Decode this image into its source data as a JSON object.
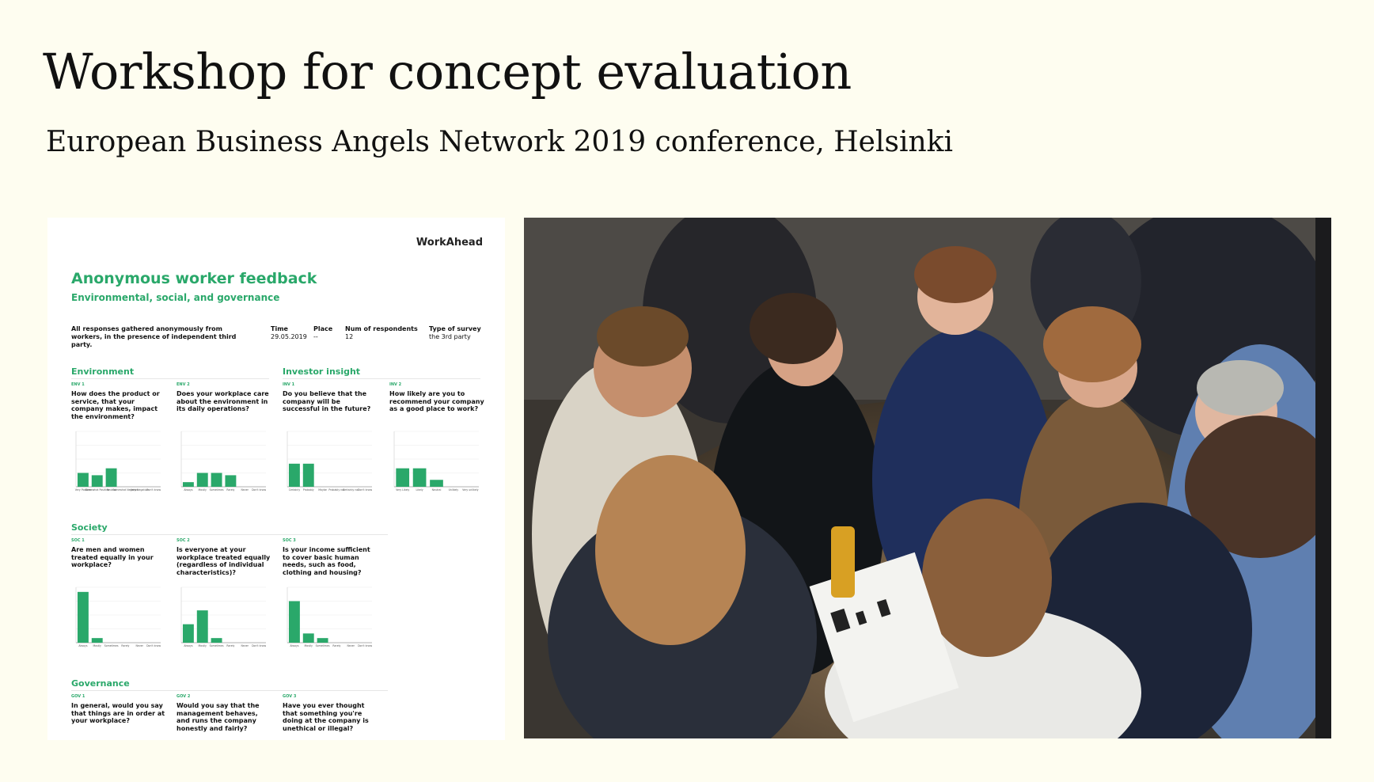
{
  "slide": {
    "title": "Workshop for concept evaluation",
    "subtitle": "European Business Angels Network 2019 conference, Helsinki"
  },
  "document": {
    "brand": "WorkAhead",
    "heading": "Anonymous worker feedback",
    "subheading": "Environmental, social, and governance",
    "intro": "All responses gathered anonymously from workers, in the presence of independent third party.",
    "meta": [
      {
        "label": "Time",
        "value": "29.05.2019"
      },
      {
        "label": "Place",
        "value": "--"
      },
      {
        "label": "Num of respondents",
        "value": "12"
      },
      {
        "label": "Type of survey",
        "value": "the 3rd party"
      }
    ],
    "sections": {
      "environment": "Environment",
      "investor": "Investor insight",
      "society": "Society",
      "governance": "Governance"
    },
    "questions": [
      {
        "num": "ENV 1",
        "text": "How does the product or service, that your company makes, impact the environment?"
      },
      {
        "num": "ENV 2",
        "text": "Does your workplace care about the environment in its daily operations?"
      },
      {
        "num": "INV 1",
        "text": "Do you believe that the company will be successful in the future?"
      },
      {
        "num": "INV 2",
        "text": "How likely are you to recommend your company as a good place to work?"
      },
      {
        "num": "SOC 1",
        "text": "Are men and women treated equally in your workplace?"
      },
      {
        "num": "SOC 2",
        "text": "Is everyone at your workplace treated equally (regardless of individual characteristics)?"
      },
      {
        "num": "SOC 3",
        "text": "Is your income sufficient to cover basic human needs, such as food, clothing and housing?"
      },
      {
        "num": "GOV 1",
        "text": "In general, would you say that things are in order at your workplace?"
      },
      {
        "num": "GOV 2",
        "text": "Would you say that the management behaves, and runs the company honestly and fairly?"
      },
      {
        "num": "GOV 3",
        "text": "Have you ever thought that something you're doing at the company is unethical or illegal?"
      }
    ]
  },
  "chart_data": [
    {
      "type": "bar",
      "categories": [
        "Very Positive",
        "Somewhat Positive",
        "Neutral",
        "Somewhat Negative",
        "Very Negative",
        "Don't know"
      ],
      "values": [
        3,
        2.5,
        4,
        0,
        0,
        0
      ],
      "ylim": [
        0,
        12
      ],
      "ylabel": "",
      "xlabel": ""
    },
    {
      "type": "bar",
      "categories": [
        "Always",
        "Mostly",
        "Sometimes",
        "Rarely",
        "Never",
        "Don't know"
      ],
      "values": [
        1,
        3,
        3,
        2.5,
        0,
        0
      ],
      "ylim": [
        0,
        12
      ],
      "ylabel": "",
      "xlabel": ""
    },
    {
      "type": "bar",
      "categories": [
        "Certainly",
        "Probably",
        "Maybe",
        "Probably not",
        "Certainly not",
        "Don't know"
      ],
      "values": [
        5,
        5,
        0,
        0,
        0,
        0
      ],
      "ylim": [
        0,
        12
      ],
      "ylabel": "",
      "xlabel": ""
    },
    {
      "type": "bar",
      "categories": [
        "Very Likely",
        "Likely",
        "Neutral",
        "Unlikely",
        "Very unlikely"
      ],
      "values": [
        4,
        4,
        1.5,
        0,
        0
      ],
      "ylim": [
        0,
        12
      ],
      "ylabel": "",
      "xlabel": ""
    },
    {
      "type": "bar",
      "categories": [
        "Always",
        "Mostly",
        "Sometimes",
        "Rarely",
        "Never",
        "Don't know"
      ],
      "values": [
        11,
        1,
        0,
        0,
        0,
        0
      ],
      "ylim": [
        0,
        12
      ],
      "ylabel": "",
      "xlabel": ""
    },
    {
      "type": "bar",
      "categories": [
        "Always",
        "Mostly",
        "Sometimes",
        "Rarely",
        "Never",
        "Don't know"
      ],
      "values": [
        4,
        7,
        1,
        0,
        0,
        0
      ],
      "ylim": [
        0,
        12
      ],
      "ylabel": "",
      "xlabel": ""
    },
    {
      "type": "bar",
      "categories": [
        "Always",
        "Mostly",
        "Sometimes",
        "Rarely",
        "Never",
        "Don't know"
      ],
      "values": [
        9,
        2,
        1,
        0,
        0,
        0
      ],
      "ylim": [
        0,
        12
      ],
      "ylabel": "",
      "xlabel": ""
    }
  ],
  "colors": {
    "accent": "#2aa86a",
    "background": "#fefdf0"
  }
}
